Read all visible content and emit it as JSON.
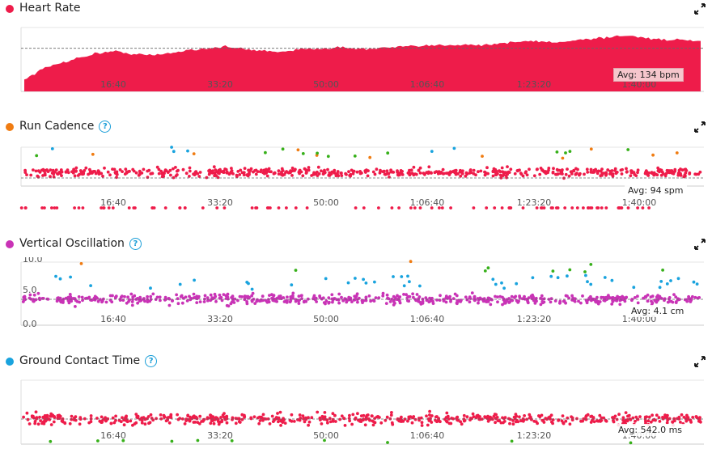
{
  "colors": {
    "hr": "#ee1c4a",
    "cadence_dot": "#f07c12",
    "vo_dot": "#c933b6",
    "gct_dot": "#19a3de",
    "help": "#1a9ed8",
    "green": "#37b01a",
    "blue": "#19a3de",
    "orange": "#f07c12",
    "grid": "#e6e6e6"
  },
  "time_ticks": [
    "16:40",
    "33:20",
    "50:00",
    "1:06:40",
    "1:23:20",
    "1:40:00"
  ],
  "panels": [
    {
      "id": "heart-rate",
      "title": "Heart Rate",
      "has_help": false,
      "avg": "Avg: 134 bpm",
      "expand_icon": "expand-icon"
    },
    {
      "id": "run-cadence",
      "title": "Run Cadence",
      "has_help": true,
      "avg": "Avg: 94 spm",
      "expand_icon": "expand-icon"
    },
    {
      "id": "vertical-oscillation",
      "title": "Vertical Oscillation",
      "has_help": true,
      "avg": "Avg: 4.1 cm",
      "y_ticks": [
        "10.0",
        "5.0",
        "0.0"
      ],
      "expand_icon": "expand-icon"
    },
    {
      "id": "ground-contact-time",
      "title": "Ground Contact Time",
      "has_help": true,
      "avg": "Avg: 542.0 ms",
      "expand_icon": "expand-icon"
    }
  ],
  "chart_data": [
    {
      "type": "area",
      "title": "Heart Rate",
      "x_ticks": [
        "16:40",
        "33:20",
        "50:00",
        "1:06:40",
        "1:23:20",
        "1:40:00"
      ],
      "average": 134,
      "unit": "bpm",
      "series": [
        {
          "values": [
            95,
            108,
            116,
            122,
            128,
            130,
            127,
            125,
            128,
            132,
            134,
            136,
            133,
            131,
            130,
            132,
            134,
            135,
            134,
            133,
            135,
            136,
            137,
            138,
            139,
            138,
            140,
            142,
            143,
            141,
            144,
            146,
            148,
            150,
            147,
            145,
            144,
            143
          ]
        }
      ]
    },
    {
      "type": "scatter",
      "title": "Run Cadence",
      "x_ticks": [
        "16:40",
        "33:20",
        "50:00",
        "1:06:40",
        "1:23:20",
        "1:40:00"
      ],
      "average": 94,
      "unit": "spm"
    },
    {
      "type": "scatter",
      "title": "Vertical Oscillation",
      "x_ticks": [
        "16:40",
        "33:20",
        "50:00",
        "1:06:40",
        "1:23:20",
        "1:40:00"
      ],
      "y_ticks": [
        "10.0",
        "5.0",
        "0.0"
      ],
      "ylim": [
        0,
        10
      ],
      "average": 4.1,
      "unit": "cm"
    },
    {
      "type": "scatter",
      "title": "Ground Contact Time",
      "x_ticks": [
        "16:40",
        "33:20",
        "50:00",
        "1:06:40",
        "1:23:20",
        "1:40:00"
      ],
      "average": 542.0,
      "unit": "ms"
    }
  ]
}
